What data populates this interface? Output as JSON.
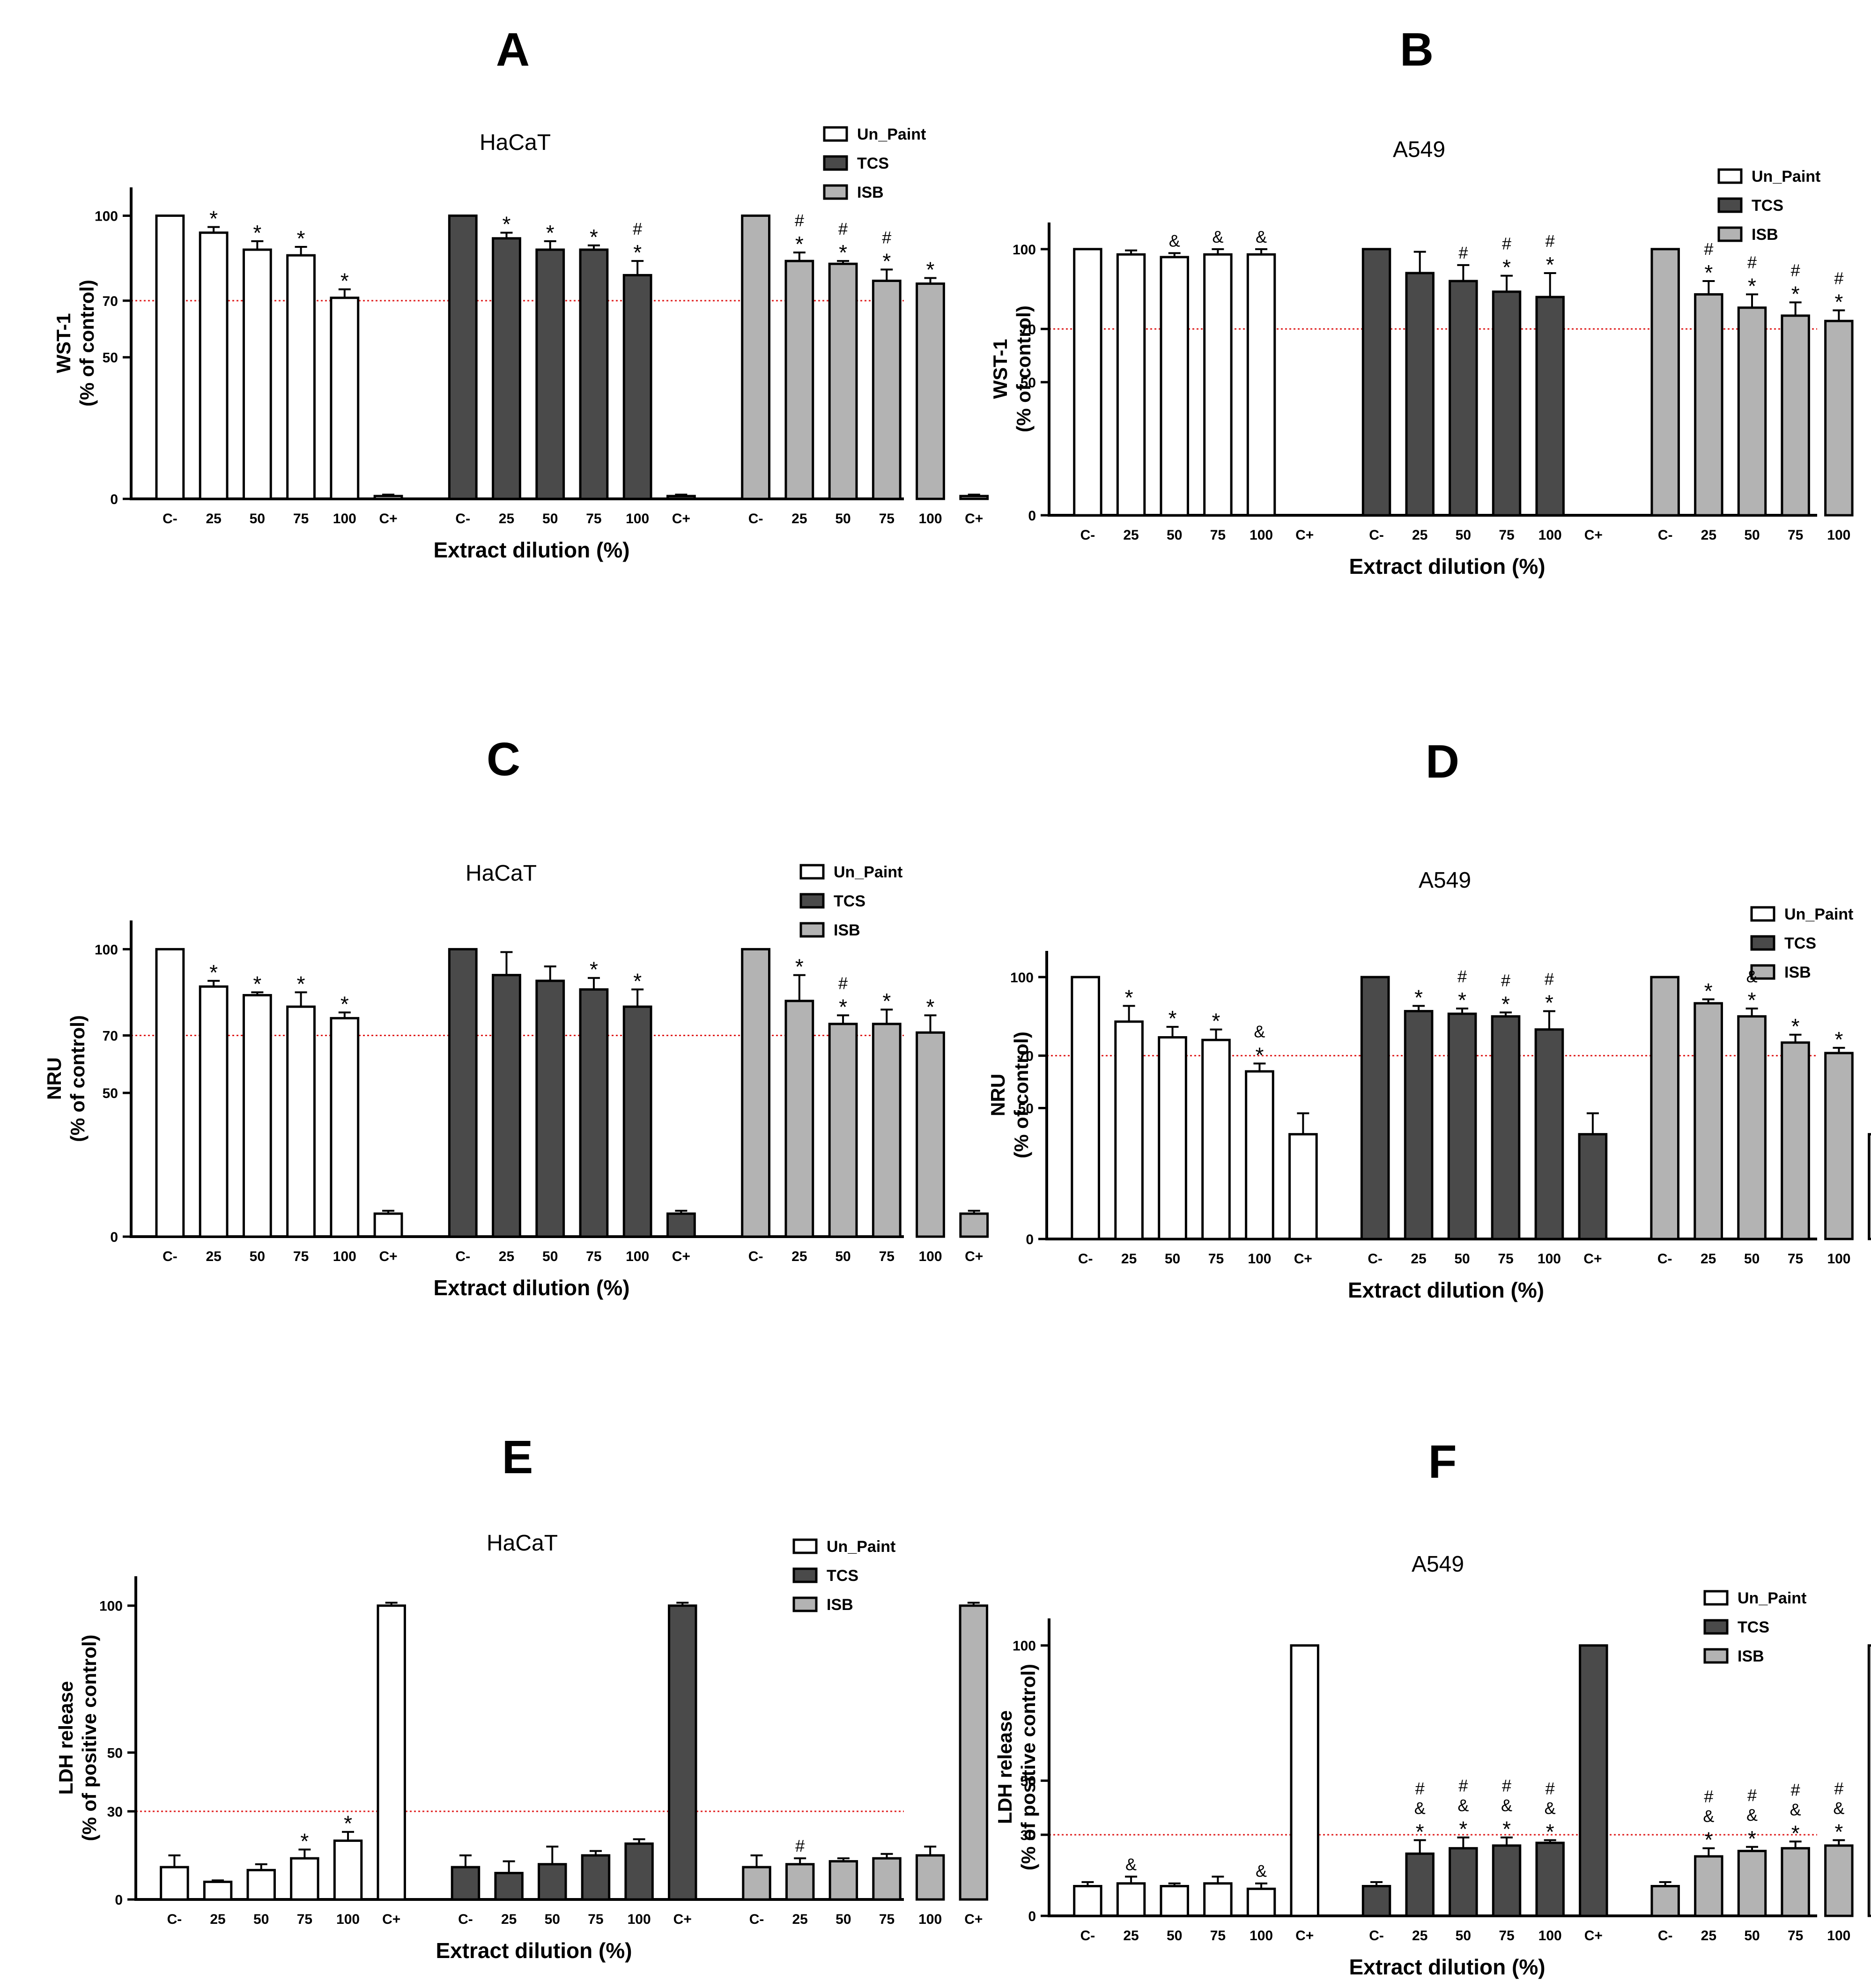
{
  "figure": {
    "categories": [
      "C-",
      "25",
      "50",
      "75",
      "100",
      "C+"
    ],
    "legend": [
      {
        "name": "Un_Paint",
        "color": "#ffffff"
      },
      {
        "name": "TCS",
        "color": "#4a4a4a"
      },
      {
        "name": "ISB",
        "color": "#b3b3b3"
      }
    ],
    "threshold_color": "#e02020",
    "xlabel": "Extract dilution (%)"
  },
  "chart_data": [
    {
      "panel": "A",
      "type": "bar",
      "title": "HaCaT",
      "xlabel": "Extract dilution (%)",
      "ylabel": [
        "WST-1",
        "(% of control)"
      ],
      "ylim": [
        0,
        110
      ],
      "yticks": [
        0,
        50,
        70,
        100
      ],
      "threshold": 70,
      "categories": [
        "C-",
        "25",
        "50",
        "75",
        "100",
        "C+"
      ],
      "series": [
        {
          "name": "Un_Paint",
          "values": [
            100,
            94,
            88,
            86,
            71,
            1
          ],
          "errors": [
            0,
            2,
            3,
            3,
            3,
            0.5
          ],
          "sig": [
            "",
            "*",
            "*",
            "*",
            "*",
            ""
          ]
        },
        {
          "name": "TCS",
          "values": [
            100,
            92,
            88,
            88,
            79,
            1
          ],
          "errors": [
            0,
            2,
            3,
            1.5,
            5,
            0.5
          ],
          "sig": [
            "",
            "*",
            "*",
            "*",
            "#\n*",
            ""
          ]
        },
        {
          "name": "ISB",
          "values": [
            100,
            84,
            83,
            77,
            76,
            1
          ],
          "errors": [
            0,
            3,
            1,
            4,
            2,
            0.5
          ],
          "sig": [
            "",
            "#\n*",
            "#\n*",
            "#\n*",
            "*",
            ""
          ]
        }
      ]
    },
    {
      "panel": "B",
      "type": "bar",
      "title": "A549",
      "xlabel": "Extract dilution (%)",
      "ylabel": [
        "WST-1",
        "(% of control)"
      ],
      "ylim": [
        0,
        110
      ],
      "yticks": [
        0,
        50,
        70,
        100
      ],
      "threshold": 70,
      "categories": [
        "C-",
        "25",
        "50",
        "75",
        "100",
        "C+"
      ],
      "series": [
        {
          "name": "Un_Paint",
          "values": [
            100,
            98,
            97,
            98,
            98,
            0
          ],
          "errors": [
            0,
            1.5,
            1.5,
            2,
            2,
            0
          ],
          "sig": [
            "",
            "",
            "&",
            "&",
            "&",
            ""
          ]
        },
        {
          "name": "TCS",
          "values": [
            100,
            91,
            88,
            84,
            82,
            0
          ],
          "errors": [
            0,
            8,
            6,
            6,
            9,
            0
          ],
          "sig": [
            "",
            "",
            "#",
            "#\n*",
            "#\n*",
            ""
          ]
        },
        {
          "name": "ISB",
          "values": [
            100,
            83,
            78,
            75,
            73,
            0
          ],
          "errors": [
            0,
            5,
            5,
            5,
            4,
            0
          ],
          "sig": [
            "",
            "#\n*",
            "#\n*",
            "#\n*",
            "#\n*",
            ""
          ]
        }
      ]
    },
    {
      "panel": "C",
      "type": "bar",
      "title": "HaCaT",
      "xlabel": "Extract dilution (%)",
      "ylabel": [
        "NRU",
        "(% of control)"
      ],
      "ylim": [
        0,
        110
      ],
      "yticks": [
        0,
        50,
        70,
        100
      ],
      "threshold": 70,
      "categories": [
        "C-",
        "25",
        "50",
        "75",
        "100",
        "C+"
      ],
      "series": [
        {
          "name": "Un_Paint",
          "values": [
            100,
            87,
            84,
            80,
            76,
            8
          ],
          "errors": [
            0,
            2,
            1,
            5,
            2,
            1
          ],
          "sig": [
            "",
            "*",
            "*",
            "*",
            "*",
            ""
          ]
        },
        {
          "name": "TCS",
          "values": [
            100,
            91,
            89,
            86,
            80,
            8
          ],
          "errors": [
            0,
            8,
            5,
            4,
            6,
            1
          ],
          "sig": [
            "",
            "",
            "",
            "*",
            "*",
            ""
          ]
        },
        {
          "name": "ISB",
          "values": [
            100,
            82,
            74,
            74,
            71,
            8
          ],
          "errors": [
            0,
            9,
            3,
            5,
            6,
            1
          ],
          "sig": [
            "",
            "*",
            "#\n*",
            "*",
            "*",
            ""
          ]
        }
      ]
    },
    {
      "panel": "D",
      "type": "bar",
      "title": "A549",
      "xlabel": "Extract dilution (%)",
      "ylabel": [
        "NRU",
        "(% of control)"
      ],
      "ylim": [
        0,
        110
      ],
      "yticks": [
        0,
        50,
        70,
        100
      ],
      "threshold": 70,
      "categories": [
        "C-",
        "25",
        "50",
        "75",
        "100",
        "C+"
      ],
      "series": [
        {
          "name": "Un_Paint",
          "values": [
            100,
            83,
            77,
            76,
            64,
            40
          ],
          "errors": [
            0,
            6,
            4,
            4,
            3,
            8
          ],
          "sig": [
            "",
            "*",
            "*",
            "*",
            "&\n*",
            ""
          ]
        },
        {
          "name": "TCS",
          "values": [
            100,
            87,
            86,
            85,
            80,
            40
          ],
          "errors": [
            0,
            2,
            2,
            1.5,
            7,
            8
          ],
          "sig": [
            "",
            "*",
            "#\n*",
            "#\n*",
            "#\n*",
            ""
          ]
        },
        {
          "name": "ISB",
          "values": [
            100,
            90,
            85,
            75,
            71,
            40
          ],
          "errors": [
            0,
            1.5,
            3,
            3,
            2,
            8
          ],
          "sig": [
            "",
            "*",
            "&\n*",
            "*",
            "*",
            ""
          ]
        }
      ]
    },
    {
      "panel": "E",
      "type": "bar",
      "title": "HaCaT",
      "xlabel": "Extract dilution (%)",
      "ylabel": [
        "LDH release",
        "(% of positive control)"
      ],
      "ylim": [
        0,
        110
      ],
      "yticks": [
        0,
        30,
        50,
        100
      ],
      "threshold": 30,
      "categories": [
        "C-",
        "25",
        "50",
        "75",
        "100",
        "C+"
      ],
      "series": [
        {
          "name": "Un_Paint",
          "values": [
            11,
            6,
            10,
            14,
            20,
            100
          ],
          "errors": [
            4,
            0.5,
            2,
            3,
            3,
            1
          ],
          "sig": [
            "",
            "",
            "",
            "*",
            "*",
            ""
          ]
        },
        {
          "name": "TCS",
          "values": [
            11,
            9,
            12,
            15,
            19,
            100
          ],
          "errors": [
            4,
            4,
            6,
            1.5,
            1.5,
            1
          ],
          "sig": [
            "",
            "",
            "",
            "",
            "",
            ""
          ]
        },
        {
          "name": "ISB",
          "values": [
            11,
            12,
            13,
            14,
            15,
            100
          ],
          "errors": [
            4,
            2,
            1,
            1.5,
            3,
            1
          ],
          "sig": [
            "",
            "#",
            "",
            "",
            "",
            ""
          ]
        }
      ]
    },
    {
      "panel": "F",
      "type": "bar",
      "title": "A549",
      "xlabel": "Extract dilution (%)",
      "ylabel": [
        "LDH release",
        "(% of positive control)"
      ],
      "ylim": [
        0,
        110
      ],
      "yticks": [
        0,
        30,
        50,
        100
      ],
      "threshold": 30,
      "categories": [
        "C-",
        "25",
        "50",
        "75",
        "100",
        "C+"
      ],
      "series": [
        {
          "name": "Un_Paint",
          "values": [
            11,
            12,
            11,
            12,
            10,
            100
          ],
          "errors": [
            1.5,
            2.5,
            1,
            2.5,
            2,
            0
          ],
          "sig": [
            "",
            "&",
            "",
            "",
            "&",
            ""
          ]
        },
        {
          "name": "TCS",
          "values": [
            11,
            23,
            25,
            26,
            27,
            100
          ],
          "errors": [
            1.5,
            5,
            4,
            3,
            1,
            0
          ],
          "sig": [
            "",
            "#\n&\n*",
            "#\n&\n*",
            "#\n&\n*",
            "#\n&\n*",
            ""
          ]
        },
        {
          "name": "ISB",
          "values": [
            11,
            22,
            24,
            25,
            26,
            100
          ],
          "errors": [
            1.5,
            3,
            1.5,
            2.5,
            2,
            0
          ],
          "sig": [
            "",
            "#\n&\n*",
            "#\n&\n*",
            "#\n&\n*",
            "#\n&\n*",
            ""
          ]
        }
      ]
    }
  ]
}
